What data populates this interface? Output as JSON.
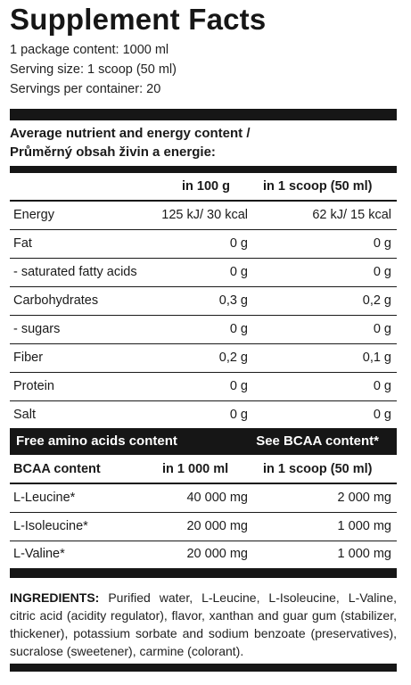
{
  "title": "Supplement Facts",
  "meta": {
    "package": "1 package content: 1000 ml",
    "serving": "Serving size: 1 scoop (50 ml)",
    "servings": "Servings per container: 20"
  },
  "nutrient_section": {
    "heading_line1": "Average nutrient and energy content /",
    "heading_line2": "Průměrný obsah živin a energie:",
    "col1": "in 100 g",
    "col2": "in 1 scoop (50 ml)",
    "rows": [
      {
        "name": "Energy",
        "v1": "125 kJ/ 30 kcal",
        "v2": "62 kJ/ 15 kcal"
      },
      {
        "name": "Fat",
        "v1": "0 g",
        "v2": "0 g"
      },
      {
        "name": "- saturated fatty acids",
        "v1": "0 g",
        "v2": "0 g"
      },
      {
        "name": "Carbohydrates",
        "v1": "0,3 g",
        "v2": "0,2 g"
      },
      {
        "name": "- sugars",
        "v1": "0 g",
        "v2": "0 g"
      },
      {
        "name": "Fiber",
        "v1": "0,2 g",
        "v2": "0,1 g"
      },
      {
        "name": "Protein",
        "v1": "0 g",
        "v2": "0 g"
      },
      {
        "name": "Salt",
        "v1": "0 g",
        "v2": "0 g"
      }
    ]
  },
  "amino_bar": {
    "left": "Free amino acids content",
    "right": "See BCAA content*"
  },
  "bcaa_section": {
    "head_name": "BCAA content",
    "col1": "in 1 000 ml",
    "col2": "in 1 scoop (50 ml)",
    "rows": [
      {
        "name": "L-Leucine*",
        "v1": "40 000 mg",
        "v2": "2 000 mg"
      },
      {
        "name": "L-Isoleucine*",
        "v1": "20 000 mg",
        "v2": "1 000 mg"
      },
      {
        "name": "L-Valine*",
        "v1": "20 000 mg",
        "v2": "1 000 mg"
      }
    ]
  },
  "ingredients": {
    "label": "INGREDIENTS:",
    "text": " Purified water, L-Leucine, L-Isoleucine, L-Valine, citric acid (acidity regulator), flavor, xanthan and guar gum (stabilizer, thickener), potassium sorbate and sodium benzoate (preservatives), sucralose (sweetener), carmine (colorant)."
  }
}
